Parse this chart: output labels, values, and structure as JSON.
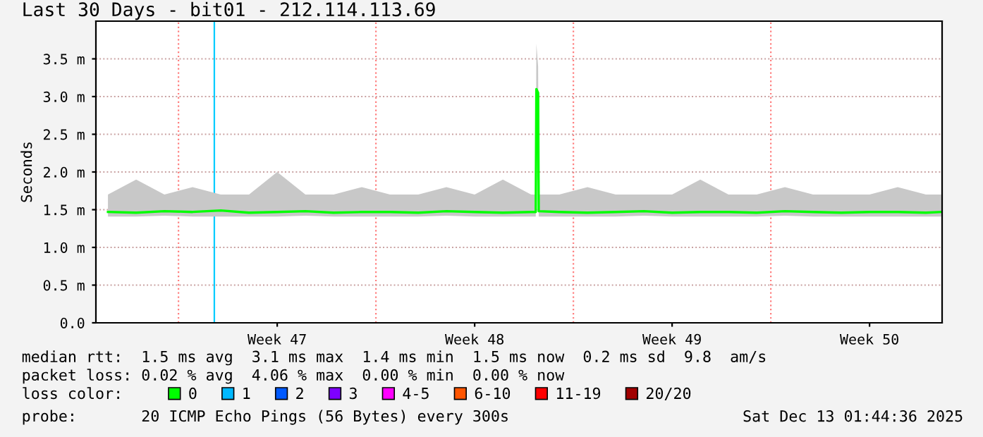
{
  "chart_data": {
    "type": "line",
    "title": "Last 30 Days - bit01 - 212.114.113.69",
    "ylabel": "Seconds",
    "x": [
      "2025-11-13T12:00",
      "2025-11-14T12:00",
      "2025-11-15T12:00",
      "2025-11-16T12:00",
      "2025-11-17T12:00",
      "2025-11-18T12:00",
      "2025-11-19T12:00",
      "2025-11-20T12:00",
      "2025-11-21T12:00",
      "2025-11-22T12:00",
      "2025-11-23T12:00",
      "2025-11-24T12:00",
      "2025-11-25T12:00",
      "2025-11-26T12:00",
      "2025-11-27T12:00",
      "2025-11-28T12:00",
      "2025-11-28T16:00",
      "2025-11-28T16:30",
      "2025-11-28T18:00",
      "2025-11-28T18:30",
      "2025-11-29T12:00",
      "2025-11-30T12:00",
      "2025-12-01T12:00",
      "2025-12-02T12:00",
      "2025-12-03T12:00",
      "2025-12-04T12:00",
      "2025-12-05T12:00",
      "2025-12-06T12:00",
      "2025-12-07T12:00",
      "2025-12-08T12:00",
      "2025-12-09T12:00",
      "2025-12-10T12:00",
      "2025-12-11T12:00",
      "2025-12-12T12:00",
      "2025-12-13T01:00"
    ],
    "series": [
      {
        "name": "0",
        "color": "#00ff00",
        "values": [
          1.47,
          1.46,
          1.48,
          1.47,
          1.49,
          1.46,
          1.47,
          1.48,
          1.46,
          1.47,
          1.47,
          1.46,
          1.48,
          1.47,
          1.46,
          1.47,
          1.47,
          3.1,
          3.05,
          1.48,
          1.47,
          1.46,
          1.47,
          1.48,
          1.46,
          1.47,
          1.47,
          1.46,
          1.48,
          1.47,
          1.46,
          1.47,
          1.47,
          1.46,
          1.47
        ],
        "lower": [
          1.41,
          1.41,
          1.42,
          1.41,
          1.41,
          1.41,
          1.41,
          1.42,
          1.41,
          1.41,
          1.41,
          1.41,
          1.42,
          1.41,
          1.41,
          1.41,
          1.41,
          2.9,
          2.9,
          1.41,
          1.41,
          1.41,
          1.41,
          1.42,
          1.41,
          1.41,
          1.41,
          1.41,
          1.42,
          1.41,
          1.41,
          1.41,
          1.41,
          1.41,
          1.41
        ],
        "upper": [
          1.7,
          1.9,
          1.7,
          1.8,
          1.7,
          1.7,
          2.0,
          1.7,
          1.7,
          1.8,
          1.7,
          1.7,
          1.8,
          1.7,
          1.9,
          1.7,
          1.7,
          3.7,
          3.4,
          1.7,
          1.7,
          1.8,
          1.7,
          1.7,
          1.7,
          1.9,
          1.7,
          1.7,
          1.8,
          1.7,
          1.7,
          1.7,
          1.8,
          1.7,
          1.7
        ]
      },
      {
        "name": "1",
        "color": "#00b8ff",
        "values": [
          null,
          null,
          null,
          null,
          null,
          null,
          null,
          null,
          null,
          null,
          null,
          null,
          null,
          null,
          null,
          null,
          null,
          null,
          null,
          null,
          null,
          null,
          null,
          null,
          null,
          null,
          null,
          null,
          null,
          null,
          null,
          null,
          null,
          null,
          null
        ]
      },
      {
        "name": "2",
        "color": "#0059ff",
        "values": [
          null,
          null,
          null,
          null,
          null,
          null,
          null,
          null,
          null,
          null,
          null,
          null,
          null,
          null,
          null,
          null,
          null,
          null,
          null,
          null,
          null,
          null,
          null,
          null,
          null,
          null,
          null,
          null,
          null,
          null,
          null,
          null,
          null,
          null,
          null
        ]
      },
      {
        "name": "3",
        "color": "#7e00ff",
        "values": [
          null,
          null,
          null,
          null,
          null,
          null,
          null,
          null,
          null,
          null,
          null,
          null,
          null,
          null,
          null,
          null,
          null,
          null,
          null,
          null,
          null,
          null,
          null,
          null,
          null,
          null,
          null,
          null,
          null,
          null,
          null,
          null,
          null,
          null,
          null
        ]
      },
      {
        "name": "4-5",
        "color": "#ff00ff",
        "values": [
          null,
          null,
          null,
          null,
          null,
          null,
          null,
          null,
          null,
          null,
          null,
          null,
          null,
          null,
          null,
          null,
          null,
          null,
          null,
          null,
          null,
          null,
          null,
          null,
          null,
          null,
          null,
          null,
          null,
          null,
          null,
          null,
          null,
          null,
          null
        ]
      },
      {
        "name": "6-10",
        "color": "#ff5500",
        "values": [
          null,
          null,
          null,
          null,
          null,
          null,
          null,
          null,
          null,
          null,
          null,
          null,
          null,
          null,
          null,
          null,
          null,
          null,
          null,
          null,
          null,
          null,
          null,
          null,
          null,
          null,
          null,
          null,
          null,
          null,
          null,
          null,
          null,
          null,
          null
        ]
      },
      {
        "name": "11-19",
        "color": "#ff0000",
        "values": [
          null,
          null,
          null,
          null,
          null,
          null,
          null,
          null,
          null,
          null,
          null,
          null,
          null,
          null,
          null,
          null,
          null,
          null,
          null,
          null,
          null,
          null,
          null,
          null,
          null,
          null,
          null,
          null,
          null,
          null,
          null,
          null,
          null,
          null,
          null
        ]
      },
      {
        "name": "20/20",
        "color": "#a10000",
        "values": [
          null,
          null,
          null,
          null,
          null,
          null,
          null,
          null,
          null,
          null,
          null,
          null,
          null,
          null,
          null,
          null,
          null,
          null,
          null,
          null,
          null,
          null,
          null,
          null,
          null,
          null,
          null,
          null,
          null,
          null,
          null,
          null,
          null,
          null,
          null
        ]
      }
    ],
    "xlim": [
      "2025-11-13T01:44",
      "2025-12-13T01:44"
    ],
    "xticks": [
      {
        "value": "2025-11-19T12:00",
        "label": "Week 47"
      },
      {
        "value": "2025-11-26T12:00",
        "label": "Week 48"
      },
      {
        "value": "2025-12-03T12:00",
        "label": "Week 49"
      },
      {
        "value": "2025-12-10T12:00",
        "label": "Week 50"
      }
    ],
    "ylim": [
      0,
      4.0
    ],
    "yticks": [
      {
        "value": 0,
        "label": "0.0"
      },
      {
        "value": 0.5,
        "label": "0.5 m"
      },
      {
        "value": 1.0,
        "label": "1.0 m"
      },
      {
        "value": 1.5,
        "label": "1.5 m"
      },
      {
        "value": 2.0,
        "label": "2.0 m"
      },
      {
        "value": 2.5,
        "label": "2.5 m"
      },
      {
        "value": 3.0,
        "label": "3.0 m"
      },
      {
        "value": 3.5,
        "label": "3.5 m"
      }
    ],
    "ref_lines": [
      {
        "axis": "x",
        "value": "2025-11-16T00:00",
        "color": "#ff8080",
        "line_style": "dotted"
      },
      {
        "axis": "x",
        "value": "2025-11-23T00:00",
        "color": "#ff8080",
        "line_style": "dotted"
      },
      {
        "axis": "x",
        "value": "2025-11-30T00:00",
        "color": "#ff8080",
        "line_style": "dotted"
      },
      {
        "axis": "x",
        "value": "2025-12-07T00:00",
        "color": "#ff8080",
        "line_style": "dotted"
      },
      {
        "axis": "x",
        "value": "2025-11-17T06:30",
        "color": "#00ccff",
        "line_style": "solid"
      }
    ],
    "grid": "y",
    "legend": "bottom",
    "marker": "none",
    "line_style": "solid",
    "annotations": [
      "median rtt:  1.5 ms avg  3.1 ms max  1.4 ms min  1.5 ms now  0.2 ms sd  9.8  am/s",
      "packet loss: 0.02 % avg  4.06 % max  0.00 % min  0.00 % now",
      "loss color:",
      "probe:       20 ICMP Echo Pings (56 Bytes) every 300s",
      "Sat Dec 13 01:44:36 2025"
    ]
  }
}
